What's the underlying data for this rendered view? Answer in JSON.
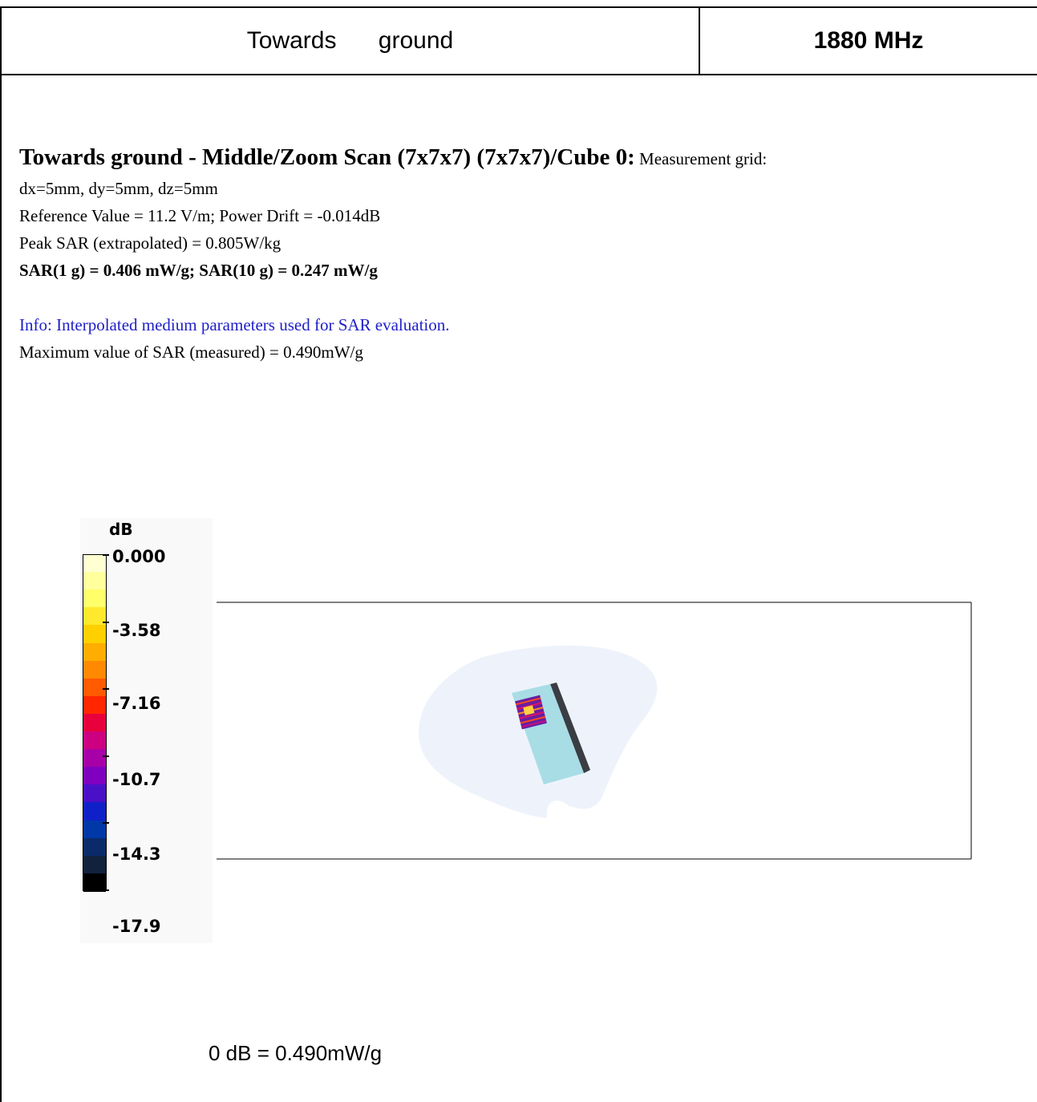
{
  "header": {
    "left_title": "Towards ground",
    "right_title": "1880 MHz"
  },
  "report": {
    "title_bold": "Towards ground - Middle/Zoom Scan (7x7x7) (7x7x7)/Cube 0:",
    "title_tail": " Measurement grid:",
    "grid_line": "dx=5mm, dy=5mm, dz=5mm",
    "reference_line": "Reference Value = 11.2 V/m; Power Drift = -0.014dB",
    "peak_line": "Peak SAR (extrapolated) = 0.805W/kg",
    "sar_line": "SAR(1 g) = 0.406 mW/g; SAR(10 g) = 0.247 mW/g",
    "info_line": "Info: Interpolated medium parameters used for SAR evaluation.",
    "max_line": "Maximum value of SAR (measured) = 0.490mW/g"
  },
  "colorbar": {
    "unit": "dB",
    "labels": [
      "0.000",
      "-3.58",
      "-7.16",
      "-10.7",
      "-14.3",
      "-17.9"
    ],
    "colors": [
      "#ffffd2",
      "#ffff9c",
      "#ffff6a",
      "#ffe92c",
      "#ffd000",
      "#ffad00",
      "#ff8900",
      "#ff5a00",
      "#ff2600",
      "#e8003c",
      "#cc0080",
      "#a800a8",
      "#8000c0",
      "#4a10c8",
      "#1020c8",
      "#0038a8",
      "#0a2a6a",
      "#10223c",
      "#000000"
    ]
  },
  "footer": {
    "reference": "0 dB = 0.490mW/g"
  }
}
